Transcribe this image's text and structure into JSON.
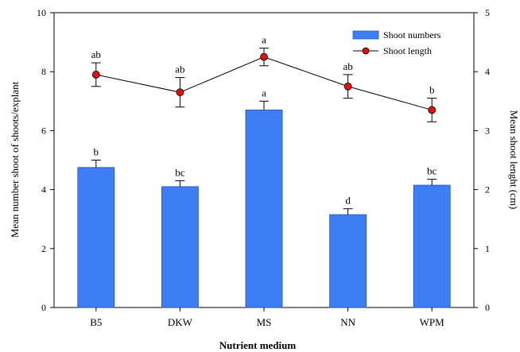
{
  "chart_data": {
    "type": "bar",
    "title": "",
    "xlabel": "Nutrient medium",
    "ylabel": "Mean number shoot of shoots/explant",
    "y2label": "Mean shoot lenght (cm)",
    "ylim": [
      0,
      10
    ],
    "y2lim": [
      0,
      5
    ],
    "yticks": [
      "0",
      "2",
      "4",
      "6",
      "8",
      "10"
    ],
    "y2ticks": [
      "0",
      "1",
      "2",
      "3",
      "4",
      "5"
    ],
    "categories": [
      "B5",
      "DKW",
      "MS",
      "NN",
      "WPM"
    ],
    "legend_position": "top-right",
    "series": [
      {
        "name": "Shoot numbers",
        "type": "bar",
        "axis": "left",
        "color": "#3d7ef5",
        "values": [
          4.75,
          4.1,
          6.7,
          3.15,
          4.15
        ],
        "errors": [
          0.25,
          0.2,
          0.3,
          0.2,
          0.2
        ],
        "labels": [
          "b",
          "bc",
          "a",
          "d",
          "bc"
        ]
      },
      {
        "name": "Shoot length",
        "type": "line",
        "axis": "right",
        "color": "#e01010",
        "values": [
          3.95,
          3.65,
          4.25,
          3.75,
          3.35
        ],
        "errors": [
          0.2,
          0.25,
          0.15,
          0.2,
          0.2
        ],
        "labels": [
          "ab",
          "ab",
          "a",
          "ab",
          "b"
        ]
      }
    ]
  }
}
